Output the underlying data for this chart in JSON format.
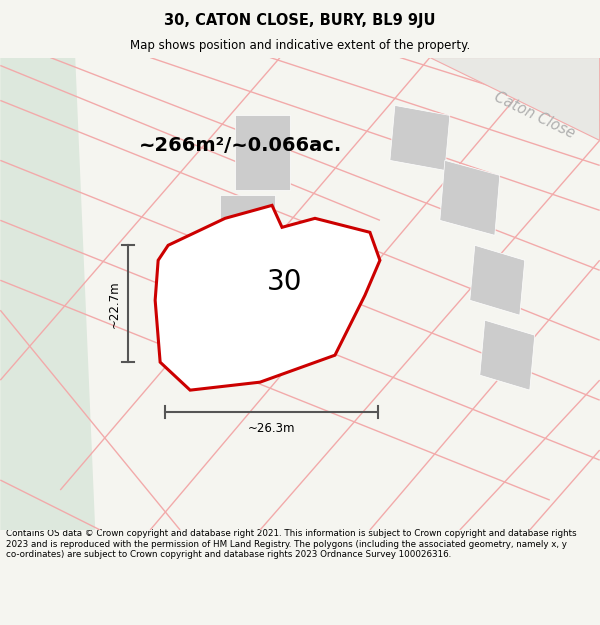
{
  "title": "30, CATON CLOSE, BURY, BL9 9JU",
  "subtitle": "Map shows position and indicative extent of the property.",
  "footer": "Contains OS data © Crown copyright and database right 2021. This information is subject to Crown copyright and database rights 2023 and is reproduced with the permission of HM Land Registry. The polygons (including the associated geometry, namely x, y co-ordinates) are subject to Crown copyright and database rights 2023 Ordnance Survey 100026316.",
  "bg_color_main": "#f5f5f0",
  "map_bg": "#ffffff",
  "property_label": "30",
  "area_text": "~266m²/~0.066ac.",
  "dim_width": "~26.3m",
  "dim_height": "~22.7m",
  "street_label": "Caton Close",
  "red_color": "#cc0000",
  "pink_color": "#f2aaaa",
  "gray_color": "#cccccc",
  "light_green": "#dde8dd",
  "dim_color": "#555555"
}
